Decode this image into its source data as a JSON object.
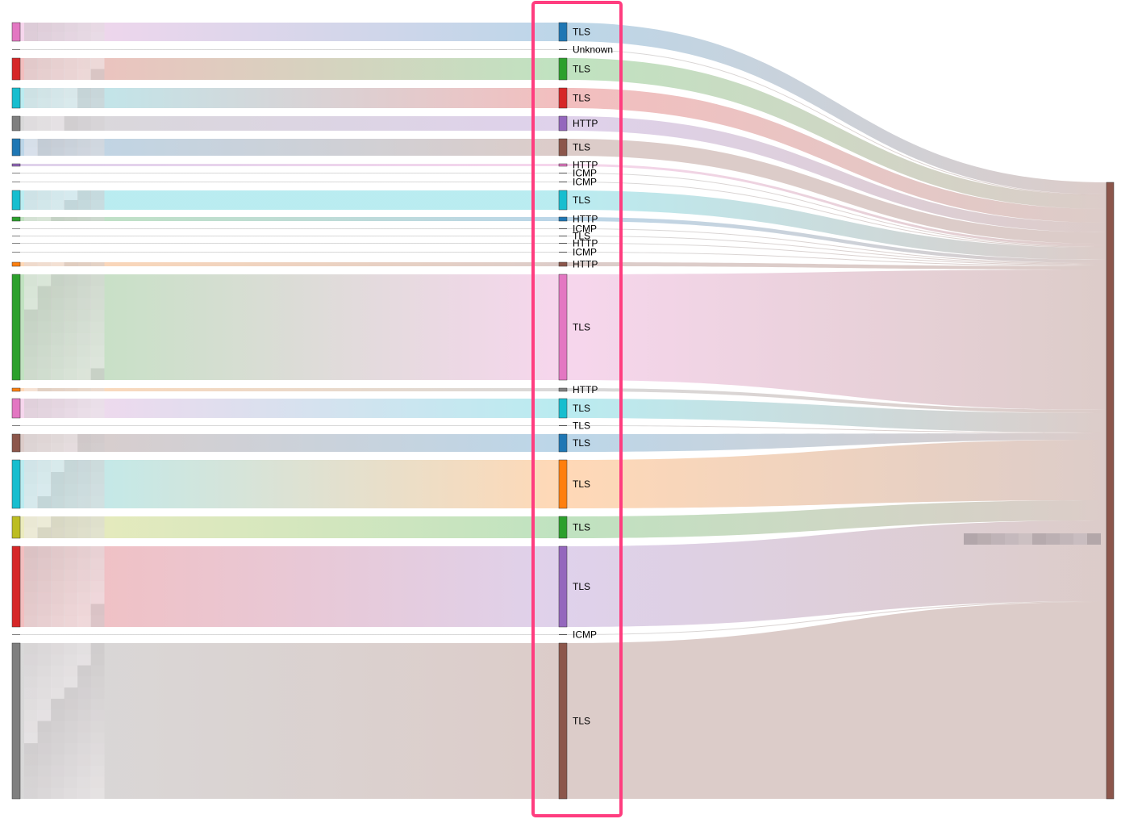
{
  "colors": {
    "blue": "#1f77b4",
    "orange": "#ff7f0e",
    "green": "#2ca02c",
    "red": "#d62728",
    "purple": "#9467bd",
    "brown": "#8c564b",
    "pink": "#e377c2",
    "gray": "#7f7f7f",
    "olive": "#bcbd22",
    "cyan": "#17becf",
    "highlight": "#ff3d7f"
  },
  "middle_nodes": [
    {
      "label": "TLS",
      "color": "blue"
    },
    {
      "label": "Unknown",
      "color": "gray"
    },
    {
      "label": "TLS",
      "color": "green"
    },
    {
      "label": "TLS",
      "color": "red"
    },
    {
      "label": "HTTP",
      "color": "purple"
    },
    {
      "label": "TLS",
      "color": "brown"
    },
    {
      "label": "HTTP",
      "color": "pink"
    },
    {
      "label": "ICMP",
      "color": "gray"
    },
    {
      "label": "ICMP",
      "color": "gray"
    },
    {
      "label": "TLS",
      "color": "cyan"
    },
    {
      "label": "HTTP",
      "color": "blue"
    },
    {
      "label": "ICMP",
      "color": "gray"
    },
    {
      "label": "TLS",
      "color": "gray"
    },
    {
      "label": "HTTP",
      "color": "gray"
    },
    {
      "label": "ICMP",
      "color": "gray"
    },
    {
      "label": "HTTP",
      "color": "brown"
    },
    {
      "label": "TLS",
      "color": "pink"
    },
    {
      "label": "HTTP",
      "color": "gray"
    },
    {
      "label": "TLS",
      "color": "cyan"
    },
    {
      "label": "TLS",
      "color": "gray"
    },
    {
      "label": "TLS",
      "color": "blue"
    },
    {
      "label": "TLS",
      "color": "orange"
    },
    {
      "label": "TLS",
      "color": "green"
    },
    {
      "label": "TLS",
      "color": "purple"
    },
    {
      "label": "ICMP",
      "color": "gray"
    },
    {
      "label": "TLS",
      "color": "brown"
    }
  ],
  "left_nodes": [
    {
      "color": "pink"
    },
    {
      "color": "gray"
    },
    {
      "color": "red"
    },
    {
      "color": "cyan"
    },
    {
      "color": "gray"
    },
    {
      "color": "blue"
    },
    {
      "color": "purple"
    },
    {
      "color": "gray"
    },
    {
      "color": "gray"
    },
    {
      "color": "cyan"
    },
    {
      "color": "green"
    },
    {
      "color": "gray"
    },
    {
      "color": "gray"
    },
    {
      "color": "gray"
    },
    {
      "color": "gray"
    },
    {
      "color": "orange"
    },
    {
      "color": "green"
    },
    {
      "color": "orange"
    },
    {
      "color": "pink"
    },
    {
      "color": "gray"
    },
    {
      "color": "brown"
    },
    {
      "color": "cyan"
    },
    {
      "color": "olive"
    },
    {
      "color": "red"
    },
    {
      "color": "gray"
    },
    {
      "color": "gray"
    }
  ],
  "right_node": {
    "color": "brown"
  }
}
